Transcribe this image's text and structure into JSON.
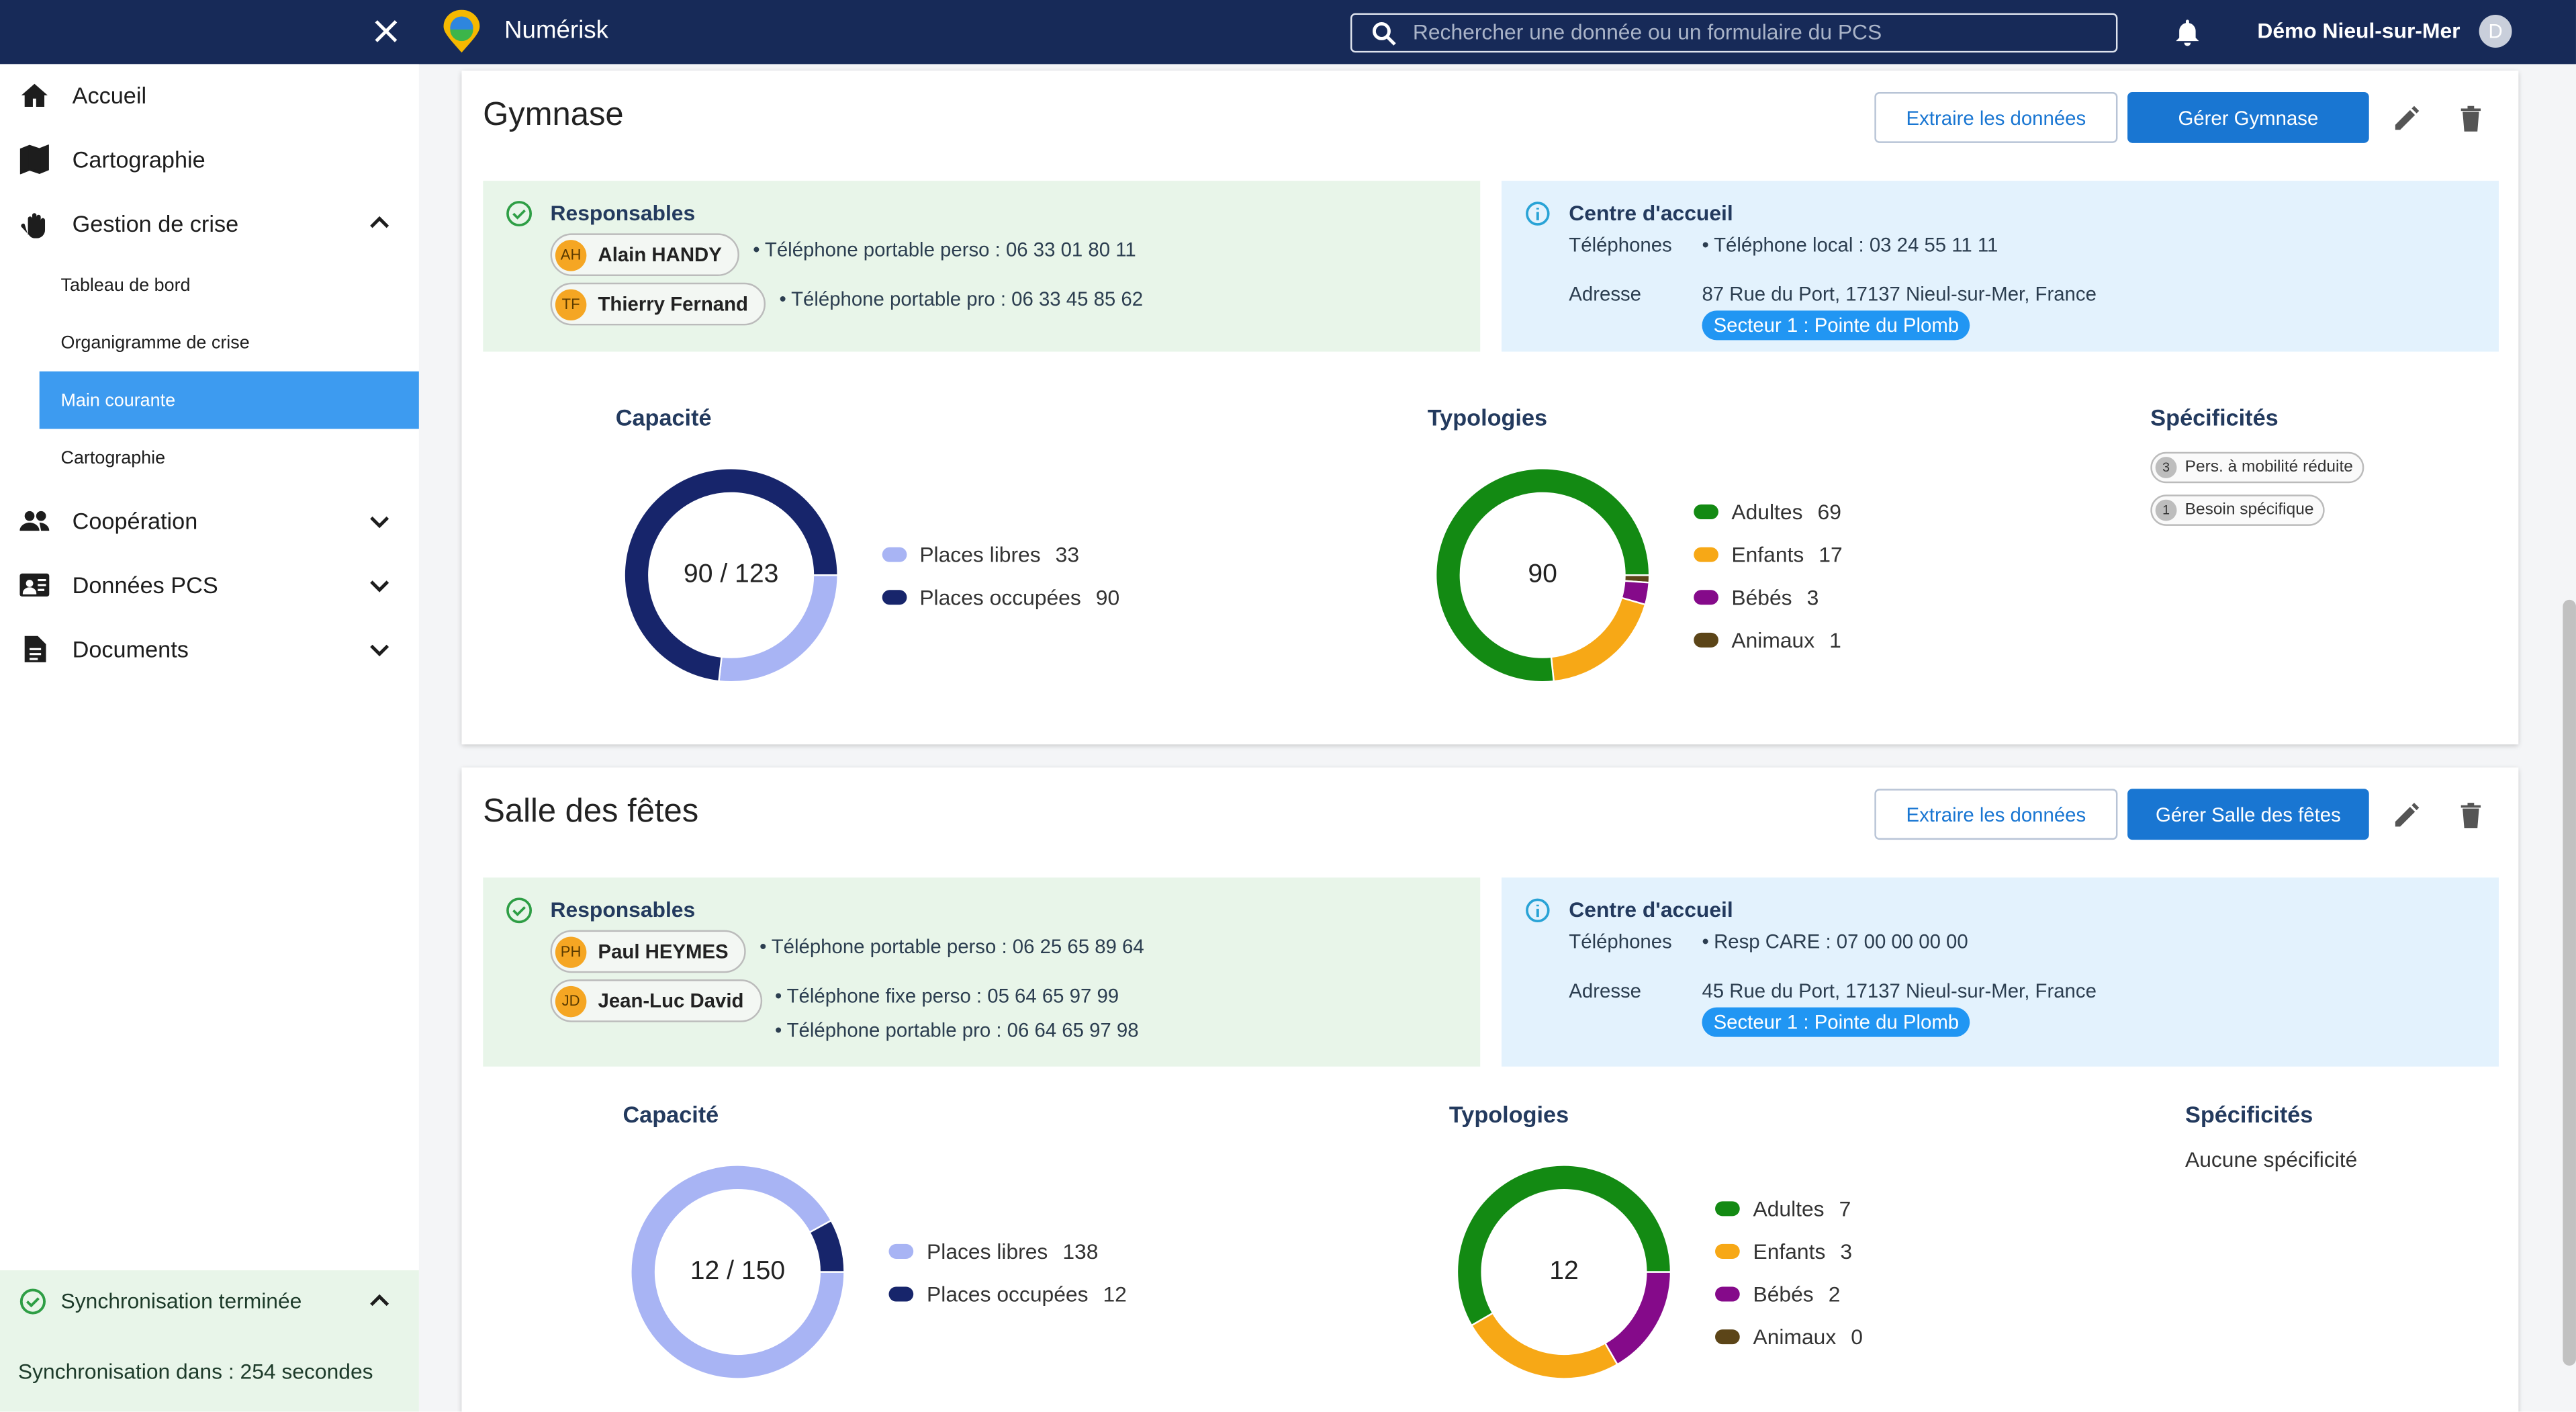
{
  "topbar": {
    "app_name": "Numérisk",
    "search_placeholder": "Rechercher une donnée ou un formulaire du PCS",
    "user": "Démo Nieul-sur-Mer",
    "avatar": "D"
  },
  "sidebar": {
    "items": [
      {
        "label": "Accueil"
      },
      {
        "label": "Cartographie"
      },
      {
        "label": "Gestion de crise",
        "children": [
          "Tableau de bord",
          "Organigramme de crise",
          "Main courante",
          "Cartographie"
        ]
      },
      {
        "label": "Coopération"
      },
      {
        "label": "Données PCS"
      },
      {
        "label": "Documents"
      }
    ],
    "sync": {
      "title": "Synchronisation terminée",
      "message": "Synchronisation dans : 254 secondes"
    }
  },
  "sections": [
    {
      "title": "Gymnase",
      "extract_button": "Extraire les données",
      "manage_button": "Gérer Gymnase",
      "responsables": {
        "title": "Responsables",
        "people": [
          {
            "initials": "AH",
            "name": "Alain HANDY",
            "phones": [
              "Téléphone portable perso : 06 33 01 80 11"
            ]
          },
          {
            "initials": "TF",
            "name": "Thierry Fernand",
            "phones": [
              "Téléphone portable pro : 06 33 45 85 62"
            ]
          }
        ]
      },
      "centre": {
        "title": "Centre d'accueil",
        "phones_label": "Téléphones",
        "phones": [
          "Téléphone local : 03 24 55 11 11"
        ],
        "address_label": "Adresse",
        "address": "87 Rue du Port, 17137 Nieul-sur-Mer, France",
        "sector": "Secteur 1 : Pointe du Plomb"
      },
      "capacite": {
        "type": "donut",
        "title": "Capacité",
        "center_label": "90 / 123",
        "series": [
          {
            "name": "Places libres",
            "value": 33,
            "color": "#a8b4f4"
          },
          {
            "name": "Places occupées",
            "value": 90,
            "color": "#17256b"
          }
        ]
      },
      "typologies": {
        "type": "donut",
        "title": "Typologies",
        "center_label": "90",
        "series": [
          {
            "name": "Adultes",
            "value": 69,
            "color": "#138a13"
          },
          {
            "name": "Enfants",
            "value": 17,
            "color": "#f7a816"
          },
          {
            "name": "Bébés",
            "value": 3,
            "color": "#850a8a"
          },
          {
            "name": "Animaux",
            "value": 1,
            "color": "#5c4518"
          }
        ]
      },
      "specificites": {
        "title": "Spécificités",
        "items": [
          {
            "count": 3,
            "label": "Pers. à mobilité réduite"
          },
          {
            "count": 1,
            "label": "Besoin spécifique"
          }
        ]
      }
    },
    {
      "title": "Salle des fêtes",
      "extract_button": "Extraire les données",
      "manage_button": "Gérer Salle des fêtes",
      "responsables": {
        "title": "Responsables",
        "people": [
          {
            "initials": "PH",
            "name": "Paul HEYMES",
            "phones": [
              "Téléphone portable perso : 06 25 65 89 64"
            ]
          },
          {
            "initials": "JD",
            "name": "Jean-Luc David",
            "phones": [
              "Téléphone fixe perso : 05 64 65 97 99",
              "Téléphone portable pro : 06 64 65 97 98"
            ]
          }
        ]
      },
      "centre": {
        "title": "Centre d'accueil",
        "phones_label": "Téléphones",
        "phones": [
          "Resp CARE : 07 00 00 00 00"
        ],
        "address_label": "Adresse",
        "address": "45 Rue du Port, 17137 Nieul-sur-Mer, France",
        "sector": "Secteur 1 : Pointe du Plomb"
      },
      "capacite": {
        "type": "donut",
        "title": "Capacité",
        "center_label": "12 / 150",
        "series": [
          {
            "name": "Places libres",
            "value": 138,
            "color": "#a8b4f4"
          },
          {
            "name": "Places occupées",
            "value": 12,
            "color": "#17256b"
          }
        ]
      },
      "typologies": {
        "type": "donut",
        "title": "Typologies",
        "center_label": "12",
        "series": [
          {
            "name": "Adultes",
            "value": 7,
            "color": "#138a13"
          },
          {
            "name": "Enfants",
            "value": 3,
            "color": "#f7a816"
          },
          {
            "name": "Bébés",
            "value": 2,
            "color": "#850a8a"
          },
          {
            "name": "Animaux",
            "value": 0,
            "color": "#5c4518"
          }
        ]
      },
      "specificites": {
        "title": "Spécificités",
        "empty": "Aucune spécificité"
      }
    }
  ]
}
